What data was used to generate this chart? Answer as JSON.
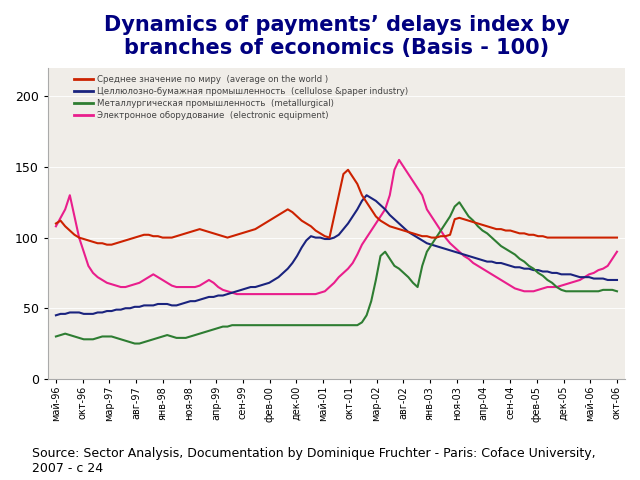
{
  "title": "Dynamics of payments’ delays index by\nbranches of economics (Basis - 100)",
  "source_text": "Source: Sector Analysis, Documentation by Dominique Fruchter - Paris: Coface University,\n2007 - с 24",
  "x_labels": [
    "май-96",
    "окт-96",
    "мар-97",
    "авг-97",
    "янв-98",
    "ноя-98",
    "апр-99",
    "сен-99",
    "фев-00",
    "дек-00",
    "май-01",
    "окт-01",
    "мар-02",
    "авг-02",
    "янв-03",
    "ноя-03",
    "апр-04",
    "сен-04",
    "фев-05",
    "дек-05",
    "май-06",
    "окт-06"
  ],
  "ylim": [
    0,
    220
  ],
  "yticks": [
    0,
    50,
    100,
    150,
    200
  ],
  "legend_entries": [
    {
      "label_ru": "Среднее значение по миру",
      "label_en": "(average on the world )",
      "color": "#cc2200",
      "lw": 1.5
    },
    {
      "label_ru": "Целлюлозно-бумажная промышленность",
      "label_en": "(cellulose &paper industry)",
      "color": "#1a237e",
      "lw": 1.5
    },
    {
      "label_ru": "Металлургическая промышленность",
      "label_en": "(metallurgical)",
      "color": "#2e7d32",
      "lw": 1.5
    },
    {
      "label_ru": "Электронное оборудование",
      "label_en": "(electronic equipment)",
      "color": "#e91e8c",
      "lw": 1.5
    }
  ],
  "series": {
    "world": [
      110,
      112,
      108,
      105,
      102,
      100,
      99,
      98,
      97,
      96,
      96,
      95,
      95,
      96,
      97,
      98,
      99,
      100,
      101,
      102,
      102,
      101,
      101,
      100,
      100,
      100,
      101,
      102,
      103,
      104,
      105,
      106,
      105,
      104,
      103,
      102,
      101,
      100,
      101,
      102,
      103,
      104,
      105,
      106,
      108,
      110,
      112,
      114,
      116,
      118,
      120,
      118,
      115,
      112,
      110,
      108,
      105,
      103,
      101,
      100,
      115,
      130,
      145,
      148,
      143,
      138,
      130,
      125,
      120,
      115,
      112,
      110,
      108,
      107,
      106,
      105,
      104,
      103,
      102,
      101,
      101,
      100,
      100,
      101,
      101,
      102,
      113,
      114,
      113,
      112,
      111,
      110,
      109,
      108,
      107,
      106,
      106,
      105,
      105,
      104,
      103,
      103,
      102,
      102,
      101,
      101,
      100,
      100,
      100,
      100,
      100,
      100,
      100,
      100,
      100,
      100,
      100,
      100,
      100,
      100,
      100,
      100
    ],
    "cellulose": [
      45,
      46,
      46,
      47,
      47,
      47,
      46,
      46,
      46,
      47,
      47,
      48,
      48,
      49,
      49,
      50,
      50,
      51,
      51,
      52,
      52,
      52,
      53,
      53,
      53,
      52,
      52,
      53,
      54,
      55,
      55,
      56,
      57,
      58,
      58,
      59,
      59,
      60,
      61,
      62,
      63,
      64,
      65,
      65,
      66,
      67,
      68,
      70,
      72,
      75,
      78,
      82,
      87,
      93,
      98,
      101,
      100,
      100,
      99,
      99,
      100,
      102,
      106,
      110,
      115,
      120,
      126,
      130,
      128,
      126,
      123,
      120,
      116,
      113,
      110,
      107,
      104,
      102,
      100,
      98,
      96,
      95,
      94,
      93,
      92,
      91,
      90,
      89,
      88,
      87,
      86,
      85,
      84,
      83,
      83,
      82,
      82,
      81,
      80,
      79,
      79,
      78,
      78,
      77,
      77,
      76,
      76,
      75,
      75,
      74,
      74,
      74,
      73,
      72,
      72,
      72,
      71,
      71,
      71,
      70,
      70,
      70
    ],
    "metallurgical": [
      30,
      31,
      32,
      31,
      30,
      29,
      28,
      28,
      28,
      29,
      30,
      30,
      30,
      29,
      28,
      27,
      26,
      25,
      25,
      26,
      27,
      28,
      29,
      30,
      31,
      30,
      29,
      29,
      29,
      30,
      31,
      32,
      33,
      34,
      35,
      36,
      37,
      37,
      38,
      38,
      38,
      38,
      38,
      38,
      38,
      38,
      38,
      38,
      38,
      38,
      38,
      38,
      38,
      38,
      38,
      38,
      38,
      38,
      38,
      38,
      38,
      38,
      38,
      38,
      38,
      38,
      40,
      45,
      55,
      70,
      87,
      90,
      85,
      80,
      78,
      75,
      72,
      68,
      65,
      80,
      90,
      95,
      100,
      105,
      110,
      115,
      122,
      125,
      120,
      115,
      112,
      108,
      105,
      103,
      100,
      97,
      94,
      92,
      90,
      88,
      85,
      83,
      80,
      78,
      75,
      73,
      70,
      68,
      65,
      63,
      62,
      62,
      62,
      62,
      62,
      62,
      62,
      62,
      63,
      63,
      63,
      62
    ],
    "electronic": [
      108,
      114,
      120,
      130,
      115,
      100,
      90,
      80,
      75,
      72,
      70,
      68,
      67,
      66,
      65,
      65,
      66,
      67,
      68,
      70,
      72,
      74,
      72,
      70,
      68,
      66,
      65,
      65,
      65,
      65,
      65,
      66,
      68,
      70,
      68,
      65,
      63,
      62,
      61,
      60,
      60,
      60,
      60,
      60,
      60,
      60,
      60,
      60,
      60,
      60,
      60,
      60,
      60,
      60,
      60,
      60,
      60,
      61,
      62,
      65,
      68,
      72,
      75,
      78,
      82,
      88,
      95,
      100,
      105,
      110,
      115,
      120,
      130,
      148,
      155,
      150,
      145,
      140,
      135,
      130,
      120,
      115,
      110,
      105,
      100,
      96,
      93,
      90,
      87,
      85,
      82,
      80,
      78,
      76,
      74,
      72,
      70,
      68,
      66,
      64,
      63,
      62,
      62,
      62,
      63,
      64,
      65,
      65,
      65,
      66,
      67,
      68,
      69,
      70,
      72,
      74,
      75,
      77,
      78,
      80,
      85,
      90
    ]
  },
  "background_color": "#ffffff",
  "plot_bg_color": "#f0ede8",
  "title_color": "#000080",
  "title_fontsize": 15,
  "source_fontsize": 9
}
